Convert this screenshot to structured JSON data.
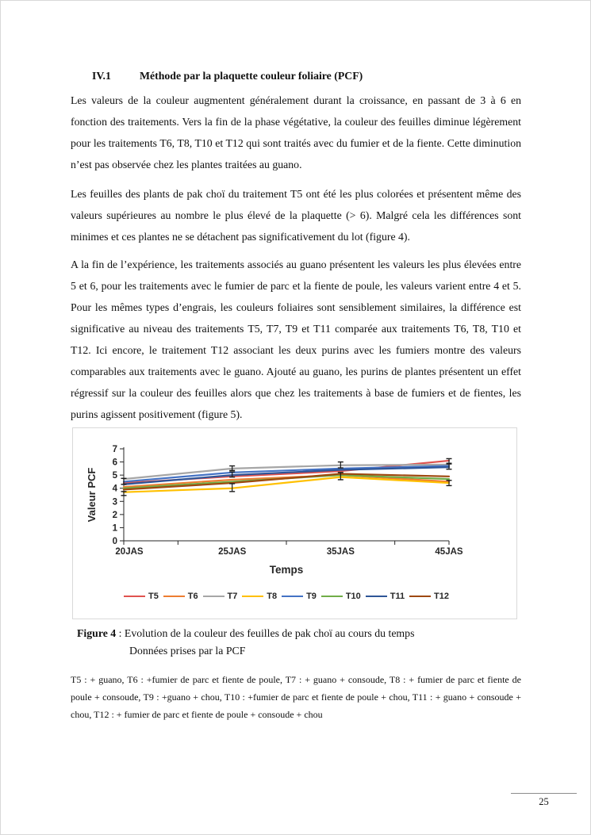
{
  "page": {
    "heading": {
      "number": "IV.1",
      "title": "Méthode par la plaquette couleur foliaire (PCF)"
    },
    "paragraphs": {
      "p1": "Les valeurs de la couleur augmentent généralement durant la croissance, en passant de 3 à 6 en fonction des traitements. Vers la fin de la phase végétative, la couleur des feuilles diminue légèrement pour les traitements T6, T8, T10 et T12 qui sont traités avec du fumier et de la fiente. Cette diminution n’est pas observée chez les plantes traitées au guano.",
      "p2": "Les feuilles des plants de pak choï du traitement T5 ont été les plus colorées et présentent même des valeurs supérieures au nombre le plus élevé de la plaquette (> 6). Malgré cela les différences sont minimes et ces plantes ne se détachent pas significativement du lot (figure 4).",
      "p3": "A la fin de l’expérience, les traitements associés au guano présentent les valeurs les plus élevées entre 5 et 6, pour les traitements avec le fumier de parc et la fiente de poule, les valeurs varient entre 4 et 5. Pour les mêmes types d’engrais, les couleurs foliaires sont sensiblement similaires, la différence est significative au niveau des traitements T5, T7, T9 et T11 comparée aux traitements T6, T8, T10 et T12. Ici encore, le traitement T12 associant les deux purins avec les fumiers montre des valeurs comparables aux traitements avec le guano. Ajouté au guano, les purins de plantes présentent un effet régressif sur la couleur des feuilles alors que chez les traitements à base de fumiers et de fientes, les purins agissent positivement (figure 5)."
    },
    "caption": {
      "label": "Figure 4",
      "text": " : Evolution de la couleur des feuilles de pak choï au cours du temps",
      "line2": "Données prises par la PCF"
    },
    "footnote": "T5 : + guano, T6 : +fumier de parc et fiente de poule, T7 : + guano + consoude, T8 : + fumier de parc et fiente de poule + consoude, T9 : +guano + chou, T10 : +fumier de parc et fiente de poule + chou, T11 : + guano + consoude + chou, T12 : + fumier de parc et fiente de poule + consoude + chou",
    "page_number": "25"
  },
  "chart_data": {
    "type": "line",
    "title": "",
    "xlabel": "Temps",
    "ylabel": "Valeur PCF",
    "categories": [
      "20JAS",
      "25JAS",
      "35JAS",
      "45JAS"
    ],
    "ylim": [
      0,
      7
    ],
    "yticks": [
      0,
      1,
      2,
      3,
      4,
      5,
      6,
      7
    ],
    "grid": false,
    "legend_position": "bottom",
    "axis_color": "#262626",
    "error_bar_color": "#1a1a1a",
    "series": [
      {
        "name": "T5",
        "color": "#E0534F",
        "values": [
          4.4,
          4.9,
          5.3,
          6.1
        ]
      },
      {
        "name": "T6",
        "color": "#ED7D31",
        "values": [
          4.1,
          4.65,
          5.0,
          4.5
        ]
      },
      {
        "name": "T7",
        "color": "#A6A6A6",
        "values": [
          4.7,
          5.5,
          5.75,
          5.8
        ]
      },
      {
        "name": "T8",
        "color": "#FFC000",
        "values": [
          3.7,
          4.0,
          4.85,
          4.4
        ]
      },
      {
        "name": "T9",
        "color": "#4472C4",
        "values": [
          4.5,
          5.2,
          5.5,
          5.7
        ]
      },
      {
        "name": "T10",
        "color": "#70AD47",
        "values": [
          4.0,
          4.5,
          5.0,
          4.7
        ]
      },
      {
        "name": "T11",
        "color": "#2E5597",
        "values": [
          4.3,
          5.0,
          5.4,
          5.6
        ]
      },
      {
        "name": "T12",
        "color": "#9E480E",
        "values": [
          3.9,
          4.4,
          5.1,
          4.9
        ]
      }
    ],
    "error_bars": [
      {
        "cat": 0,
        "low": 4.3,
        "high": 4.75
      },
      {
        "cat": 0,
        "low": 3.45,
        "high": 3.75
      },
      {
        "cat": 1,
        "low": 5.35,
        "high": 5.7
      },
      {
        "cat": 1,
        "low": 4.85,
        "high": 5.25
      },
      {
        "cat": 1,
        "low": 3.75,
        "high": 4.35
      },
      {
        "cat": 2,
        "low": 5.55,
        "high": 6.0
      },
      {
        "cat": 2,
        "low": 4.65,
        "high": 5.2
      },
      {
        "cat": 3,
        "low": 5.85,
        "high": 6.25
      },
      {
        "cat": 3,
        "low": 5.45,
        "high": 5.9
      },
      {
        "cat": 3,
        "low": 4.2,
        "high": 4.6
      }
    ]
  }
}
